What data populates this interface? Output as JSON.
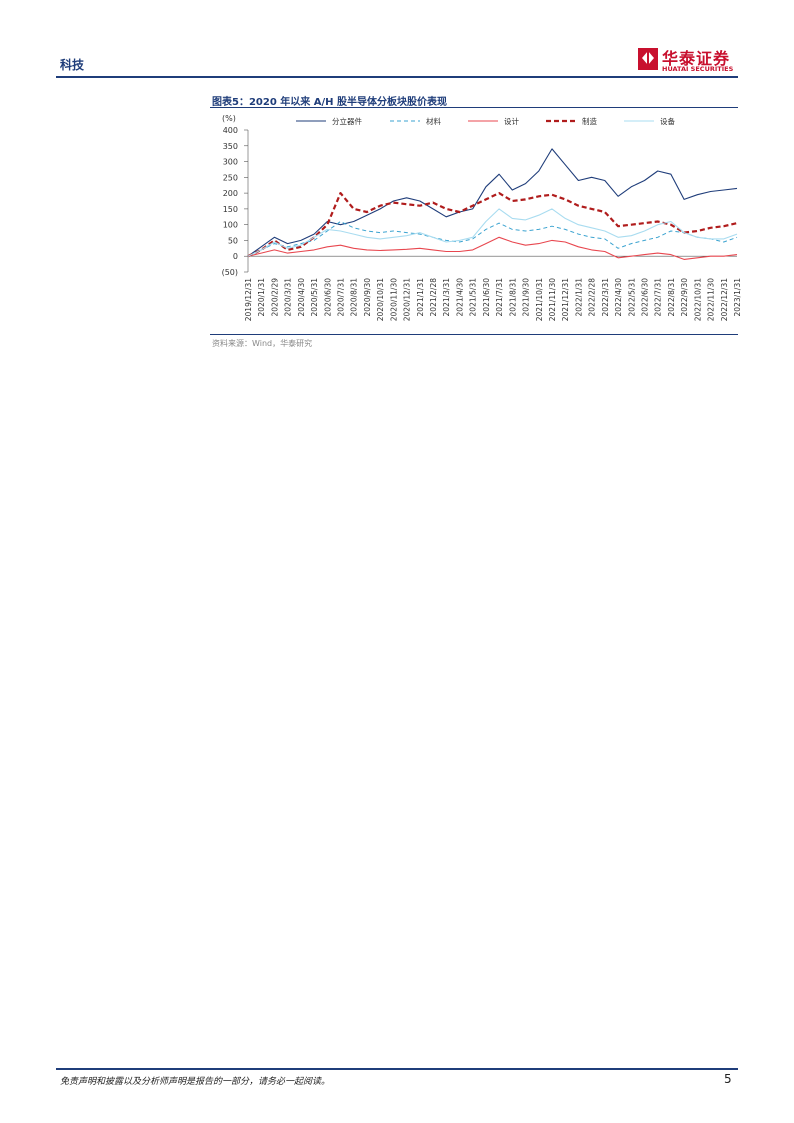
{
  "header": {
    "section": "科技",
    "logo_cn": "华泰证券",
    "logo_en": "HUATAI SECURITIES"
  },
  "figure": {
    "title": "图表5：2020 年以来 A/H 股半导体分板块股价表现",
    "source": "资料来源：Wind，华泰研究"
  },
  "footer": {
    "disclaimer": "免责声明和披露以及分析师声明是报告的一部分，请务必一起阅读。",
    "page": "5"
  },
  "chart_data": {
    "type": "line",
    "y_unit": "(%)",
    "categories": [
      "2019/12/31",
      "2020/1/31",
      "2020/2/29",
      "2020/3/31",
      "2020/4/30",
      "2020/5/31",
      "2020/6/30",
      "2020/7/31",
      "2020/8/31",
      "2020/9/30",
      "2020/10/31",
      "2020/11/30",
      "2020/12/31",
      "2021/1/31",
      "2021/2/28",
      "2021/3/31",
      "2021/4/30",
      "2021/5/31",
      "2021/6/30",
      "2021/7/31",
      "2021/8/31",
      "2021/9/30",
      "2021/10/31",
      "2021/11/30",
      "2021/12/31",
      "2022/1/31",
      "2022/2/28",
      "2022/3/31",
      "2022/4/30",
      "2022/5/31",
      "2022/6/30",
      "2022/7/31",
      "2022/8/31",
      "2022/9/30",
      "2022/10/31",
      "2022/11/30",
      "2022/12/31",
      "2023/1/31"
    ],
    "ylim": [
      -50,
      400
    ],
    "yticks": [
      400,
      350,
      300,
      250,
      200,
      150,
      100,
      50,
      0,
      {
        "value": -50,
        "label": "(50)"
      }
    ],
    "series": [
      {
        "name": "分立器件",
        "color": "#1f3d7a",
        "line_style": "solid",
        "values": [
          0,
          30,
          60,
          40,
          50,
          70,
          110,
          100,
          110,
          130,
          150,
          175,
          185,
          175,
          150,
          125,
          140,
          150,
          220,
          260,
          210,
          230,
          270,
          340,
          290,
          240,
          250,
          240,
          190,
          220,
          240,
          270,
          260,
          180,
          195,
          205,
          210,
          215
        ]
      },
      {
        "name": "材料",
        "color": "#3ba3d0",
        "line_style": "dashed",
        "values": [
          0,
          20,
          40,
          30,
          40,
          50,
          80,
          110,
          90,
          80,
          75,
          80,
          75,
          70,
          60,
          50,
          45,
          55,
          85,
          105,
          85,
          80,
          85,
          95,
          85,
          70,
          60,
          55,
          25,
          40,
          50,
          60,
          80,
          75,
          60,
          55,
          45,
          60
        ]
      },
      {
        "name": "设计",
        "color": "#e8474f",
        "line_style": "solid",
        "values": [
          0,
          10,
          20,
          10,
          15,
          20,
          30,
          35,
          25,
          20,
          18,
          20,
          22,
          25,
          20,
          15,
          15,
          20,
          40,
          60,
          45,
          35,
          40,
          50,
          45,
          30,
          20,
          15,
          -5,
          0,
          5,
          10,
          5,
          -10,
          -5,
          0,
          0,
          5
        ]
      },
      {
        "name": "制造",
        "color": "#b01c1c",
        "line_style": "bold-dashed",
        "values": [
          0,
          20,
          50,
          20,
          30,
          60,
          100,
          200,
          150,
          140,
          160,
          170,
          165,
          160,
          170,
          150,
          140,
          160,
          180,
          200,
          175,
          180,
          190,
          195,
          180,
          160,
          150,
          140,
          95,
          100,
          105,
          110,
          100,
          75,
          80,
          90,
          95,
          105
        ]
      },
      {
        "name": "设备",
        "color": "#a9dcf0",
        "line_style": "solid",
        "values": [
          0,
          20,
          45,
          25,
          35,
          60,
          85,
          80,
          70,
          60,
          55,
          60,
          65,
          75,
          60,
          45,
          50,
          60,
          110,
          150,
          120,
          115,
          130,
          150,
          120,
          100,
          90,
          80,
          60,
          65,
          80,
          100,
          110,
          75,
          60,
          55,
          55,
          70
        ]
      }
    ]
  }
}
